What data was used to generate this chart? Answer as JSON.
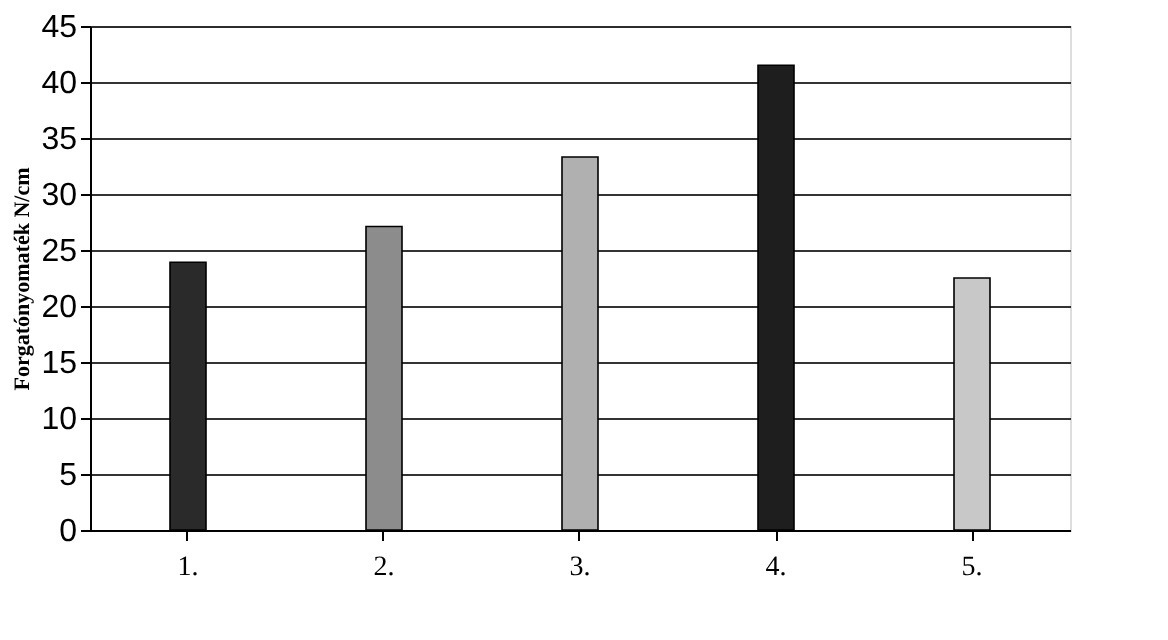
{
  "chart_data": {
    "type": "bar",
    "ylabel": "Forgatónyomaték N/cm",
    "categories": [
      "1.",
      "2.",
      "3.",
      "4.",
      "5."
    ],
    "values": [
      23.9,
      27.1,
      33.3,
      41.5,
      22.5
    ],
    "colors": [
      "#2a2a2a",
      "#8c8c8c",
      "#b0b0b0",
      "#1e1e1e",
      "#c8c8c8"
    ],
    "ylim": [
      0,
      45
    ],
    "yticks": [
      0,
      5,
      10,
      15,
      20,
      25,
      30,
      35,
      40,
      45
    ],
    "grid": "y"
  }
}
